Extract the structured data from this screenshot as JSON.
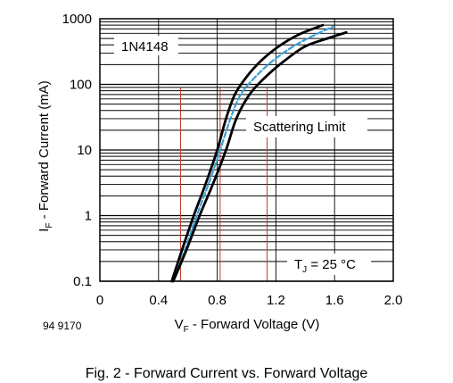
{
  "chart_data": {
    "type": "line",
    "title": "",
    "caption": "Fig. 2 - Forward Current vs. Forward Voltage",
    "figure_id": "94 9170",
    "xlabel": {
      "main": "V",
      "sub": "F",
      "rest": " - Forward Voltage (V)"
    },
    "ylabel": {
      "main": "I",
      "sub": "F",
      "rest": " - Forward Current (mA)"
    },
    "xlim": [
      0,
      2.0
    ],
    "ylim": [
      0.1,
      1000
    ],
    "y_scale": "log",
    "x_ticks": [
      "0",
      "0.4",
      "0.8",
      "1.2",
      "1.6",
      "2.0"
    ],
    "y_ticks": [
      "0.1",
      "1",
      "10",
      "100",
      "1000"
    ],
    "grid": true,
    "annotations": {
      "part": "1N4148",
      "scatter": "Scattering Limit",
      "temp_main": "T",
      "temp_sub": "J",
      "temp_rest": " = 25 °C"
    },
    "markers_x": [
      0.55,
      0.82,
      1.14
    ],
    "colors": {
      "boundary": "#000000",
      "typical": "#3a9fd6",
      "marker": "#c0392b"
    },
    "series": [
      {
        "x": [
          0.49,
          0.56,
          0.64,
          0.72,
          0.8,
          0.86,
          0.92,
          1.0,
          1.1,
          1.22,
          1.36,
          1.52
        ],
        "y": [
          0.1,
          0.3,
          1,
          3,
          10,
          30,
          70,
          130,
          230,
          380,
          580,
          800
        ]
      },
      {
        "x": [
          0.5,
          0.58,
          0.66,
          0.74,
          0.82,
          0.89,
          0.96,
          1.06,
          1.18,
          1.32,
          1.46,
          1.59
        ],
        "y": [
          0.1,
          0.3,
          1,
          3,
          10,
          30,
          70,
          130,
          230,
          380,
          560,
          760
        ]
      },
      {
        "x": [
          0.5,
          0.59,
          0.68,
          0.77,
          0.86,
          0.93,
          1.02,
          1.13,
          1.26,
          1.4,
          1.55,
          1.68
        ],
        "y": [
          0.1,
          0.3,
          1,
          3,
          10,
          30,
          70,
          130,
          230,
          380,
          500,
          620
        ]
      }
    ]
  }
}
